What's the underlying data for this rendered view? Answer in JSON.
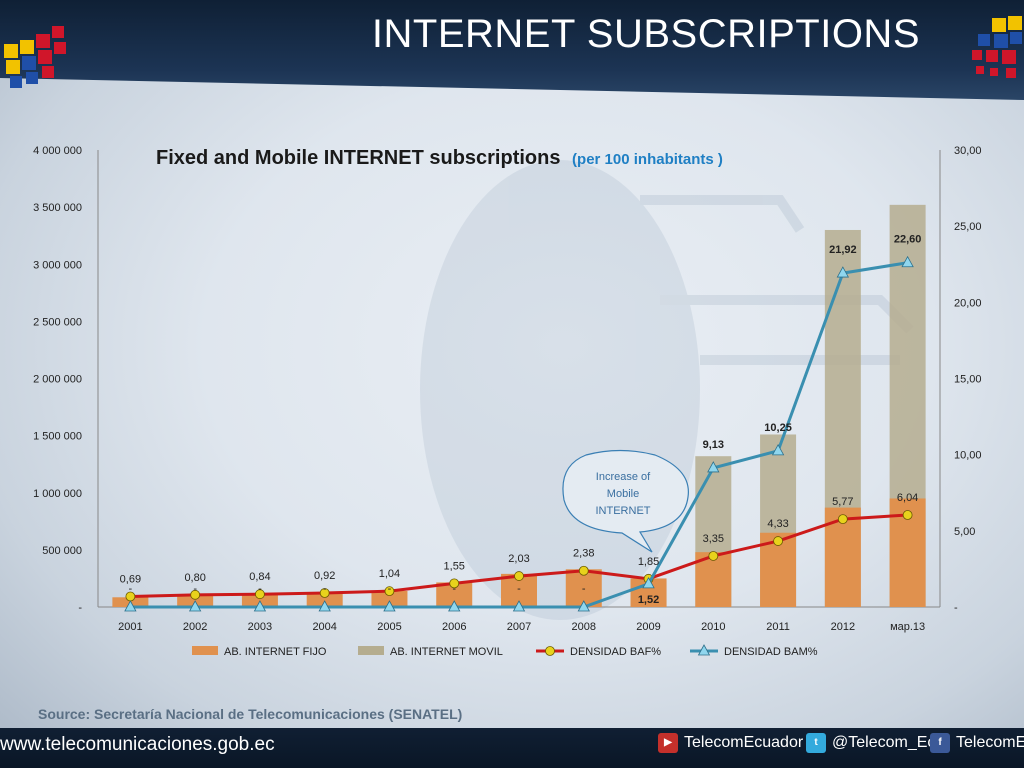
{
  "slide": {
    "title": "INTERNET SUBSCRIPTIONS",
    "source": "Source: Secretaría Nacional de Telecomunicaciones (SENATEL)",
    "website": "www.telecomunicaciones.gob.ec",
    "social": [
      {
        "platform": "youtube",
        "icon": "youtube-icon",
        "label": "TelecomEcuador",
        "color": "#c4302b"
      },
      {
        "platform": "twitter",
        "icon": "twitter-icon",
        "label": "@Telecom_Ec",
        "color": "#33ccff"
      },
      {
        "platform": "facebook",
        "icon": "facebook-icon",
        "label": "TelecomEc",
        "color": "#3b5998"
      }
    ]
  },
  "chart_data": {
    "type": "bar",
    "title": "Fixed and Mobile INTERNET subscriptions",
    "subtitle": "(per 100 inhabitants )",
    "categories": [
      "2001",
      "2002",
      "2003",
      "2004",
      "2005",
      "2006",
      "2007",
      "2008",
      "2009",
      "2010",
      "2011",
      "2012",
      "мар.13"
    ],
    "y_left": {
      "min": 0,
      "max": 4000000,
      "step": 500000,
      "tick_labels": [
        "-",
        "500 000",
        "1 000 000",
        "1 500 000",
        "2 000 000",
        "2 500 000",
        "3 000 000",
        "3 500 000",
        "4 000 000"
      ]
    },
    "y_right": {
      "min": 0,
      "max": 30,
      "step": 5,
      "tick_labels": [
        "-",
        "5,00",
        "10,00",
        "15,00",
        "20,00",
        "25,00",
        "30,00"
      ]
    },
    "series": [
      {
        "name": "AB. INTERNET FIJO",
        "kind": "bar",
        "axis": "left",
        "color": "#e0914e",
        "values": [
          85000,
          100000,
          110000,
          125000,
          140000,
          215000,
          290000,
          330000,
          250000,
          480000,
          650000,
          870000,
          950000
        ]
      },
      {
        "name": "AB. INTERNET MOVIL",
        "kind": "bar",
        "axis": "left",
        "color": "#b5ad8f",
        "values": [
          0,
          0,
          0,
          0,
          0,
          0,
          0,
          0,
          230000,
          1320000,
          1510000,
          3300000,
          3520000
        ]
      },
      {
        "name": "DENSIDAD BAF%",
        "kind": "line",
        "axis": "right",
        "color": "#cc1a1a",
        "marker": "circle",
        "marker_color": "#e8d21c",
        "values": [
          0.69,
          0.8,
          0.84,
          0.92,
          1.04,
          1.55,
          2.03,
          2.38,
          1.85,
          3.35,
          4.33,
          5.77,
          6.04
        ],
        "labels": [
          "0,69",
          "0,80",
          "0,84",
          "0,92",
          "1,04",
          "1,55",
          "2,03",
          "2,38",
          "1,85",
          "3,35",
          "4,33",
          "5,77",
          "6,04"
        ]
      },
      {
        "name": "DENSIDAD BAM%",
        "kind": "line",
        "axis": "right",
        "color": "#3a8fb0",
        "marker": "triangle",
        "marker_color": "#8fd6ee",
        "values": [
          0,
          0,
          0,
          0,
          0,
          0,
          0,
          0,
          1.52,
          9.13,
          10.25,
          21.92,
          22.6
        ],
        "labels": [
          "-",
          "-",
          "-",
          "-",
          "-",
          "-",
          "-",
          "-",
          "1,52",
          "9,13",
          "10,25",
          "21,92",
          "22,60"
        ]
      }
    ],
    "annotation": {
      "text": [
        "Increase of",
        "Mobile",
        "INTERNET"
      ]
    },
    "legend_position": "bottom",
    "grid": false
  }
}
